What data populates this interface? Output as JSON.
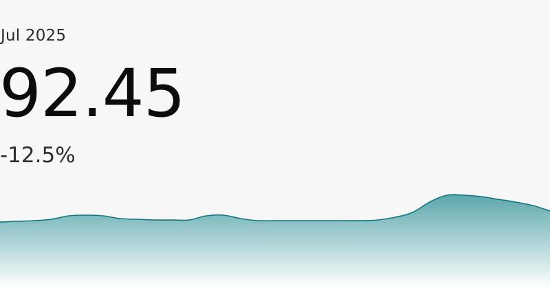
{
  "card": {
    "period": "Jul 2025",
    "value": "92.45",
    "change": "-12.5%"
  },
  "colors": {
    "background": "#f7f7f7",
    "line": "#12767e",
    "fill_top": "#4a9ea4",
    "fill_bottom": "#ffffff"
  },
  "chart_data": {
    "type": "area",
    "grid": false,
    "legend": "none",
    "ylim": [
      0,
      1
    ],
    "x": [
      0,
      1,
      2,
      3,
      4,
      5,
      6,
      7,
      8,
      9,
      10,
      11,
      12,
      13,
      14,
      15,
      16,
      17,
      18,
      19,
      20,
      21,
      22,
      23,
      24,
      25,
      26,
      27,
      28,
      29,
      30,
      31,
      32
    ],
    "values": [
      0.46,
      0.47,
      0.48,
      0.5,
      0.55,
      0.56,
      0.55,
      0.51,
      0.5,
      0.49,
      0.49,
      0.49,
      0.55,
      0.56,
      0.51,
      0.48,
      0.48,
      0.48,
      0.48,
      0.48,
      0.48,
      0.48,
      0.49,
      0.53,
      0.6,
      0.75,
      0.85,
      0.85,
      0.83,
      0.79,
      0.75,
      0.7,
      0.62
    ]
  }
}
